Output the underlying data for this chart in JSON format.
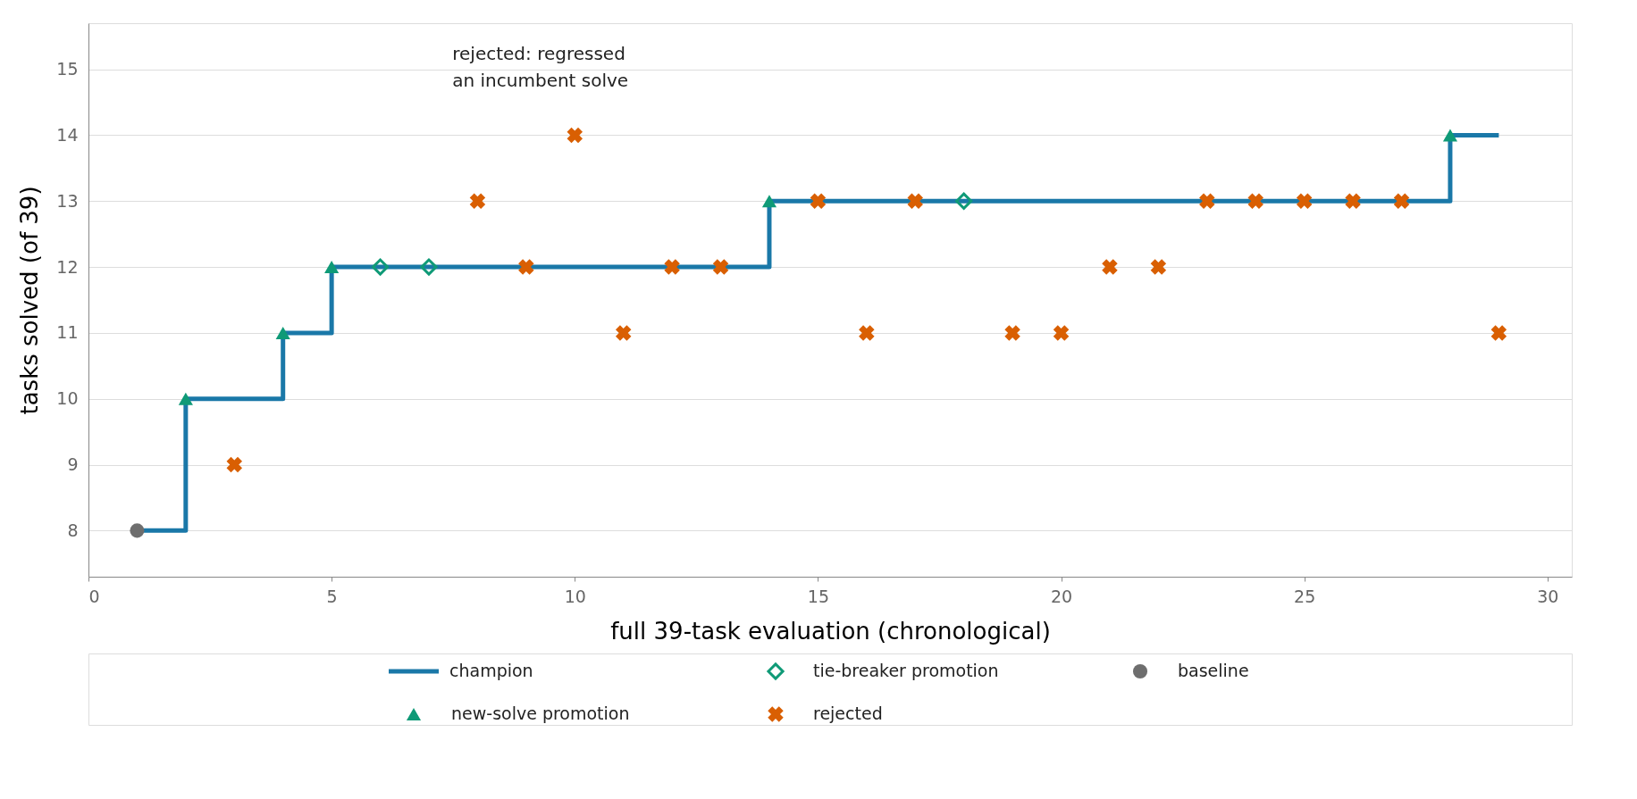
{
  "chart_data": {
    "type": "scatter",
    "xlabel": "full 39-task evaluation (chronological)",
    "ylabel": "tasks solved (of 39)",
    "xlim": [
      0,
      30.5
    ],
    "xticks": [
      0,
      5,
      10,
      15,
      20,
      25,
      30
    ],
    "ylim": [
      7.3,
      15.7
    ],
    "yticks": [
      8,
      9,
      10,
      11,
      12,
      13,
      14,
      15
    ],
    "grid": "y",
    "legend": "bottom",
    "series": [
      {
        "name": "champion",
        "type": "step",
        "color": "#1a78a8",
        "marker": "none",
        "line_style": "solid",
        "x": [
          1,
          2,
          3,
          4,
          5,
          6,
          7,
          8,
          9,
          10,
          11,
          12,
          13,
          14,
          15,
          16,
          17,
          18,
          19,
          20,
          21,
          22,
          23,
          24,
          25,
          26,
          27,
          28,
          29
        ],
        "values": [
          8,
          10,
          10,
          11,
          12,
          12,
          12,
          12,
          12,
          12,
          12,
          12,
          12,
          13,
          13,
          13,
          13,
          13,
          13,
          13,
          13,
          13,
          13,
          13,
          13,
          13,
          13,
          14,
          14
        ]
      },
      {
        "name": "new-solve promotion",
        "color": "#0f9a77",
        "marker": "triangle",
        "x": [
          2,
          4,
          5,
          14,
          28
        ],
        "values": [
          10,
          11,
          12,
          13,
          14
        ]
      },
      {
        "name": "tie-breaker promotion",
        "color": "#0f9a77",
        "marker": "diamond",
        "x": [
          6,
          7,
          18
        ],
        "values": [
          12,
          12,
          13
        ]
      },
      {
        "name": "rejected",
        "color": "#d95f02",
        "marker": "cross",
        "x": [
          3,
          8,
          9,
          10,
          11,
          12,
          13,
          15,
          16,
          17,
          19,
          20,
          21,
          22,
          23,
          24,
          25,
          26,
          27,
          29
        ],
        "values": [
          9,
          13,
          12,
          14,
          11,
          12,
          12,
          13,
          11,
          13,
          11,
          11,
          12,
          12,
          13,
          13,
          13,
          13,
          13,
          11
        ]
      },
      {
        "name": "baseline",
        "color": "#6e6e6e",
        "marker": "circle",
        "x": [
          1
        ],
        "values": [
          8
        ]
      }
    ],
    "annotations": [
      {
        "text": "rejected: regressed\nan incumbent solve",
        "x": 10,
        "y": 14
      }
    ]
  }
}
